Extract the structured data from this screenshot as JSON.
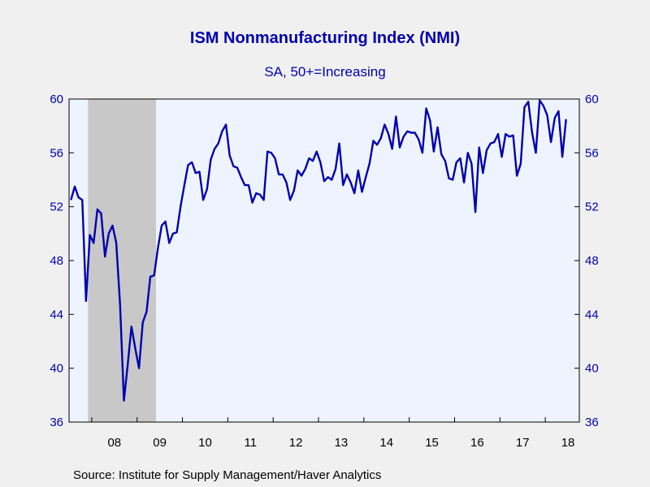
{
  "chart_data": {
    "type": "line",
    "title": "ISM Nonmanufacturing Index (NMI)",
    "subtitle": "SA, 50+=Increasing",
    "source": "Source:  Institute for Supply Management/Haver Analytics",
    "ylim": [
      36,
      60
    ],
    "yticks": [
      36,
      40,
      44,
      48,
      52,
      56,
      60
    ],
    "x_range": [
      2007.5,
      2018.75
    ],
    "year_labels": [
      "08",
      "09",
      "10",
      "11",
      "12",
      "13",
      "14",
      "15",
      "16",
      "17",
      "18"
    ],
    "recession": {
      "start": 2007.917,
      "end": 2009.417
    },
    "colors": {
      "line": "#0000b0",
      "axis_text": "#0000b0",
      "plot_bg": "#eef4ff",
      "recession": "#c8c8c8",
      "page_bg": "#f0f0f0"
    },
    "series": [
      {
        "start": [
          2007,
          7
        ],
        "values": [
          52.5,
          53.5,
          52.7,
          52.5,
          45.0,
          49.9,
          49.3,
          51.8,
          51.5,
          48.3,
          50.0,
          50.6,
          49.3,
          44.7,
          37.6,
          40.2,
          43.1,
          41.5,
          40.0,
          43.4,
          44.2,
          46.8,
          46.9,
          48.9,
          50.6,
          50.9,
          49.3,
          50.0,
          50.1,
          52.0,
          53.6,
          55.1,
          55.3,
          54.5,
          54.6,
          52.5,
          53.3,
          55.5,
          56.3,
          56.7,
          57.6,
          58.1,
          55.8,
          55.0,
          54.9,
          54.2,
          53.6,
          53.6,
          52.3,
          53.0,
          52.9,
          52.5,
          56.1,
          56.0,
          55.6,
          54.4,
          54.4,
          53.8,
          52.5,
          53.2,
          54.7,
          54.3,
          54.8,
          55.6,
          55.4,
          56.1,
          55.3,
          53.9,
          54.2,
          54.0,
          54.8,
          56.7,
          53.6,
          54.4,
          53.8,
          53.0,
          54.7,
          53.1,
          54.2,
          55.2,
          56.9,
          56.6,
          57.1,
          58.1,
          57.4,
          56.3,
          58.7,
          56.4,
          57.2,
          57.6,
          57.5,
          57.5,
          57.0,
          56.0,
          59.3,
          58.4,
          56.1,
          57.9,
          55.9,
          55.4,
          54.1,
          54.0,
          55.3,
          55.6,
          53.8,
          56.0,
          55.2,
          51.6,
          56.4,
          54.5,
          56.2,
          56.7,
          56.8,
          57.4,
          55.7,
          57.4,
          57.2,
          57.3,
          54.3,
          55.2,
          59.4,
          59.8,
          57.5,
          56.0,
          59.9,
          59.5,
          58.8,
          56.8,
          58.6,
          59.1,
          55.7,
          58.5
        ]
      }
    ]
  }
}
